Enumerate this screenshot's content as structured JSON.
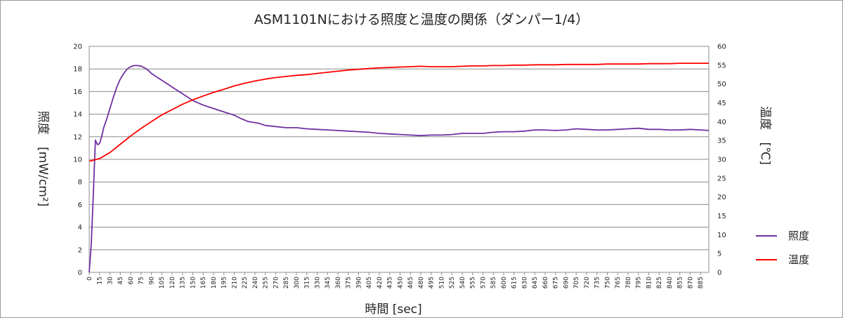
{
  "chart_data": {
    "type": "line",
    "title": "ASM1101Nにおける照度と温度の関係（ダンパー1/4）",
    "xlabel": "時間 [sec]",
    "ylabel_left_main": "照度",
    "ylabel_left_unit": "[mW/cm²]",
    "ylabel_right_main": "温度",
    "ylabel_right_unit": "[℃]",
    "x_ticks": [
      0,
      15,
      30,
      45,
      60,
      75,
      90,
      105,
      120,
      135,
      150,
      165,
      180,
      195,
      210,
      225,
      240,
      255,
      270,
      285,
      300,
      315,
      330,
      345,
      360,
      375,
      390,
      405,
      420,
      435,
      450,
      465,
      480,
      495,
      510,
      525,
      540,
      555,
      570,
      585,
      600,
      615,
      630,
      645,
      660,
      675,
      690,
      705,
      720,
      735,
      750,
      765,
      780,
      795,
      810,
      825,
      840,
      855,
      870,
      885
    ],
    "xlim": [
      0,
      897
    ],
    "ylim_left": [
      0,
      20
    ],
    "yticks_left": [
      0,
      2,
      4,
      6,
      8,
      10,
      12,
      14,
      16,
      18,
      20
    ],
    "ylim_right": [
      0,
      60
    ],
    "yticks_right": [
      0,
      5,
      10,
      15,
      20,
      25,
      30,
      35,
      40,
      45,
      50,
      55,
      60
    ],
    "grid": "horizontal",
    "legend": "right",
    "series": [
      {
        "name": "照度",
        "axis": "left",
        "color": "#7030a0",
        "points": [
          [
            0,
            0
          ],
          [
            3,
            2.5
          ],
          [
            6,
            7
          ],
          [
            9,
            11.7
          ],
          [
            12,
            11.3
          ],
          [
            15,
            11.4
          ],
          [
            18,
            12
          ],
          [
            21,
            12.8
          ],
          [
            25,
            13.5
          ],
          [
            30,
            14.5
          ],
          [
            35,
            15.5
          ],
          [
            40,
            16.4
          ],
          [
            45,
            17.1
          ],
          [
            50,
            17.6
          ],
          [
            55,
            18
          ],
          [
            60,
            18.2
          ],
          [
            65,
            18.3
          ],
          [
            70,
            18.3
          ],
          [
            75,
            18.25
          ],
          [
            80,
            18.1
          ],
          [
            85,
            17.9
          ],
          [
            90,
            17.6
          ],
          [
            100,
            17.2
          ],
          [
            110,
            16.8
          ],
          [
            120,
            16.4
          ],
          [
            130,
            16
          ],
          [
            140,
            15.6
          ],
          [
            150,
            15.2
          ],
          [
            165,
            14.8
          ],
          [
            180,
            14.5
          ],
          [
            195,
            14.2
          ],
          [
            210,
            13.9
          ],
          [
            220,
            13.6
          ],
          [
            230,
            13.35
          ],
          [
            245,
            13.2
          ],
          [
            255,
            13
          ],
          [
            270,
            12.9
          ],
          [
            285,
            12.8
          ],
          [
            300,
            12.8
          ],
          [
            315,
            12.7
          ],
          [
            330,
            12.65
          ],
          [
            345,
            12.6
          ],
          [
            360,
            12.55
          ],
          [
            375,
            12.5
          ],
          [
            390,
            12.45
          ],
          [
            405,
            12.4
          ],
          [
            420,
            12.3
          ],
          [
            435,
            12.25
          ],
          [
            450,
            12.2
          ],
          [
            465,
            12.15
          ],
          [
            480,
            12.1
          ],
          [
            495,
            12.15
          ],
          [
            510,
            12.15
          ],
          [
            525,
            12.2
          ],
          [
            540,
            12.3
          ],
          [
            555,
            12.3
          ],
          [
            570,
            12.3
          ],
          [
            585,
            12.4
          ],
          [
            600,
            12.45
          ],
          [
            615,
            12.45
          ],
          [
            630,
            12.5
          ],
          [
            645,
            12.6
          ],
          [
            660,
            12.6
          ],
          [
            675,
            12.55
          ],
          [
            690,
            12.6
          ],
          [
            705,
            12.7
          ],
          [
            720,
            12.65
          ],
          [
            735,
            12.6
          ],
          [
            750,
            12.6
          ],
          [
            765,
            12.65
          ],
          [
            780,
            12.7
          ],
          [
            795,
            12.75
          ],
          [
            810,
            12.65
          ],
          [
            825,
            12.65
          ],
          [
            840,
            12.6
          ],
          [
            855,
            12.6
          ],
          [
            870,
            12.65
          ],
          [
            885,
            12.6
          ],
          [
            897,
            12.55
          ]
        ]
      },
      {
        "name": "温度",
        "axis": "right",
        "color": "#ff0000",
        "points": [
          [
            0,
            29.5
          ],
          [
            15,
            30.2
          ],
          [
            30,
            31.8
          ],
          [
            45,
            34
          ],
          [
            60,
            36.2
          ],
          [
            75,
            38.2
          ],
          [
            90,
            40
          ],
          [
            105,
            41.8
          ],
          [
            120,
            43.2
          ],
          [
            135,
            44.6
          ],
          [
            150,
            45.8
          ],
          [
            165,
            46.8
          ],
          [
            180,
            47.8
          ],
          [
            195,
            48.6
          ],
          [
            210,
            49.5
          ],
          [
            225,
            50.2
          ],
          [
            240,
            50.8
          ],
          [
            255,
            51.3
          ],
          [
            270,
            51.7
          ],
          [
            285,
            52
          ],
          [
            300,
            52.3
          ],
          [
            315,
            52.5
          ],
          [
            330,
            52.8
          ],
          [
            345,
            53.1
          ],
          [
            360,
            53.4
          ],
          [
            375,
            53.7
          ],
          [
            390,
            53.9
          ],
          [
            405,
            54.1
          ],
          [
            420,
            54.3
          ],
          [
            435,
            54.4
          ],
          [
            450,
            54.5
          ],
          [
            465,
            54.6
          ],
          [
            480,
            54.7
          ],
          [
            495,
            54.6
          ],
          [
            510,
            54.6
          ],
          [
            525,
            54.6
          ],
          [
            540,
            54.7
          ],
          [
            555,
            54.8
          ],
          [
            570,
            54.8
          ],
          [
            585,
            54.9
          ],
          [
            600,
            54.9
          ],
          [
            615,
            55
          ],
          [
            630,
            55
          ],
          [
            645,
            55.1
          ],
          [
            660,
            55.1
          ],
          [
            675,
            55.1
          ],
          [
            690,
            55.2
          ],
          [
            705,
            55.2
          ],
          [
            720,
            55.2
          ],
          [
            735,
            55.2
          ],
          [
            750,
            55.3
          ],
          [
            765,
            55.3
          ],
          [
            780,
            55.3
          ],
          [
            795,
            55.3
          ],
          [
            810,
            55.4
          ],
          [
            825,
            55.4
          ],
          [
            840,
            55.4
          ],
          [
            855,
            55.5
          ],
          [
            870,
            55.5
          ],
          [
            885,
            55.5
          ],
          [
            897,
            55.5
          ]
        ]
      }
    ]
  }
}
